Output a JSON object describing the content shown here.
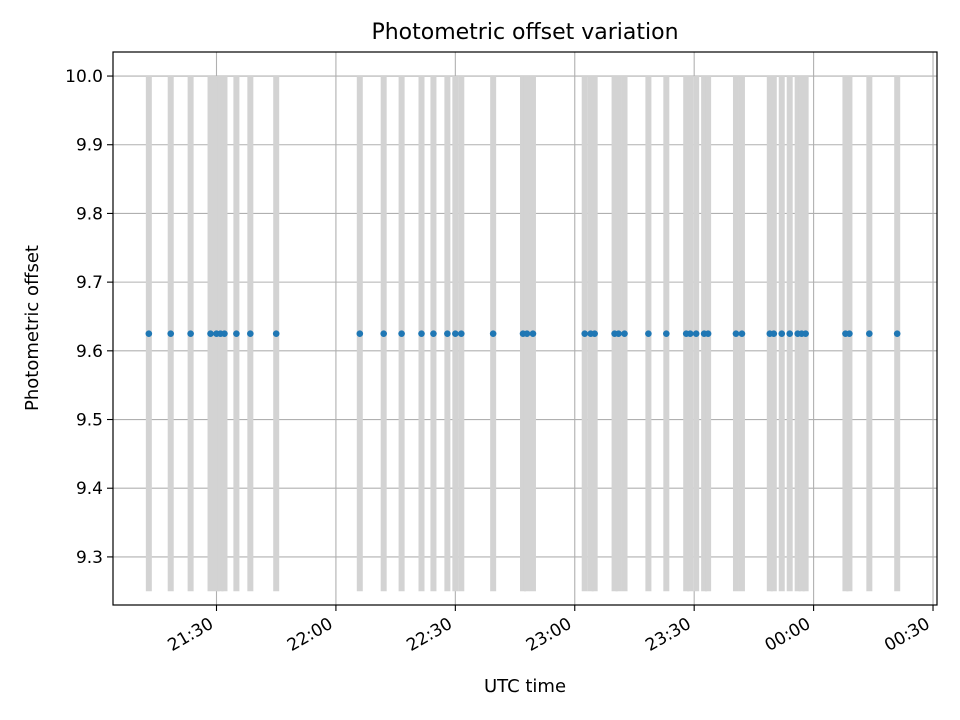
{
  "chart_data": {
    "type": "scatter",
    "title": "Photometric offset variation",
    "xlabel": "UTC time",
    "ylabel": "Photometric offset",
    "xlim": [
      "21:04",
      "00:31"
    ],
    "ylim": [
      9.23,
      10.035
    ],
    "grid": true,
    "x_ticks": [
      "21:30",
      "22:00",
      "22:30",
      "23:00",
      "23:30",
      "00:00",
      "00:30"
    ],
    "y_ticks": [
      9.3,
      9.4,
      9.5,
      9.6,
      9.7,
      9.8,
      9.9,
      10.0
    ],
    "span_range": [
      9.25,
      10.0
    ],
    "colors": {
      "points": "#1f77b4",
      "spans": "#d3d3d3",
      "grid": "#b0b0b0"
    },
    "points": {
      "y": 9.625,
      "x": [
        "21:13",
        "21:18.5",
        "21:23.5",
        "21:28.5",
        "21:30",
        "21:31",
        "21:32",
        "21:35",
        "21:38.5",
        "21:45",
        "22:06",
        "22:12",
        "22:16.5",
        "22:21.5",
        "22:24.5",
        "22:28",
        "22:30",
        "22:31.5",
        "22:39.5",
        "22:47",
        "22:48",
        "22:49.5",
        "23:02.5",
        "23:04",
        "23:05",
        "23:10",
        "23:11",
        "23:12.5",
        "23:18.5",
        "23:23",
        "23:28",
        "23:29",
        "23:30.5",
        "23:32.5",
        "23:33.5",
        "23:40.5",
        "23:42",
        "23:49",
        "23:50",
        "23:52",
        "23:54",
        "23:56",
        "23:57",
        "23:58",
        "00:08",
        "00:09",
        "00:14",
        "00:21"
      ]
    }
  }
}
